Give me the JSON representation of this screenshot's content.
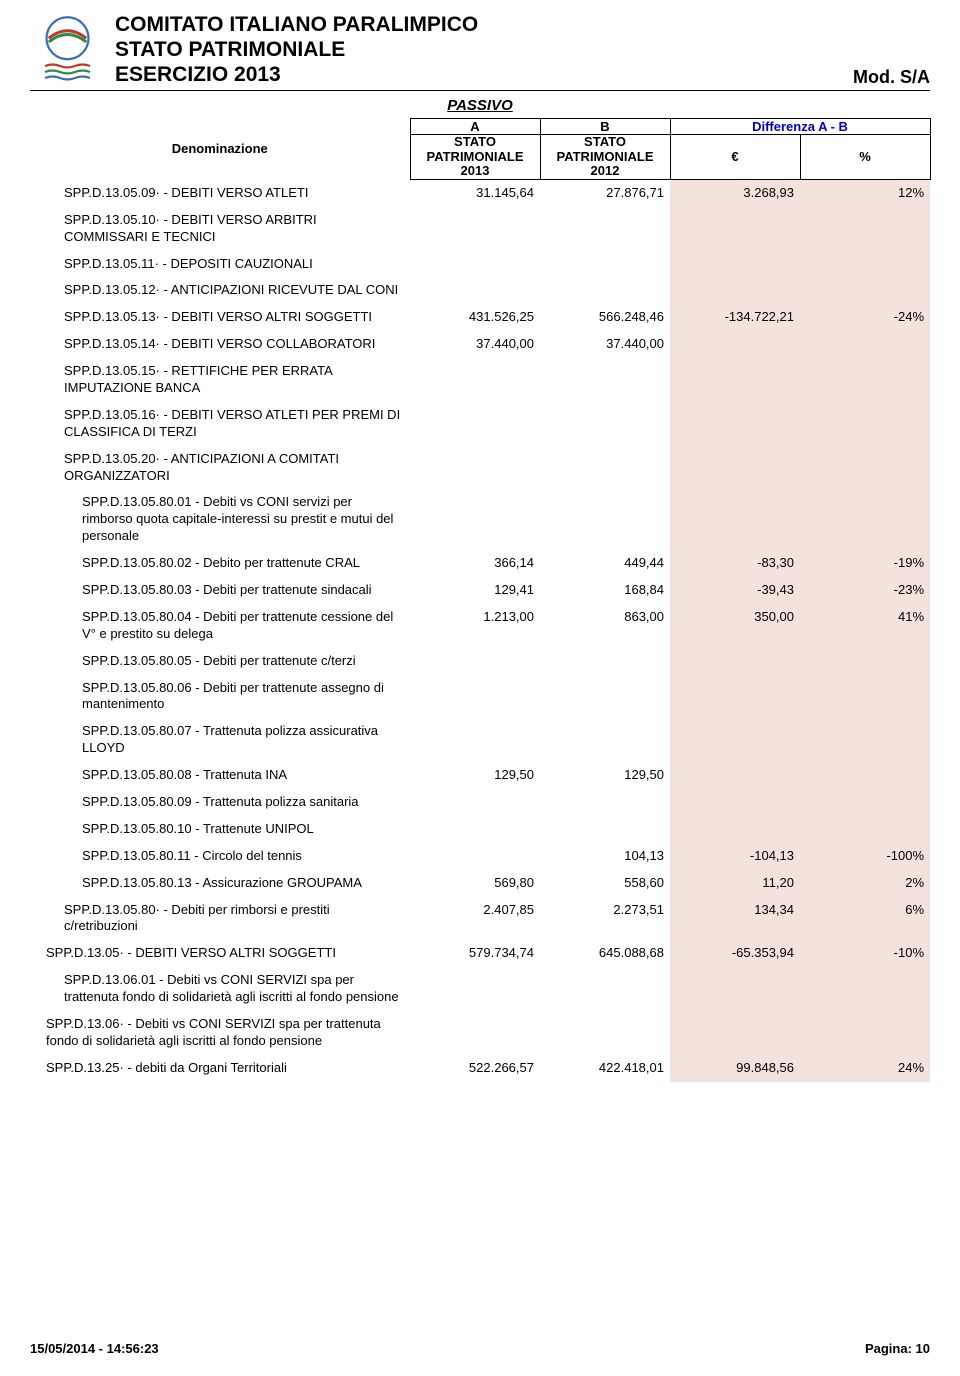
{
  "header": {
    "org": "COMITATO ITALIANO PARALIMPICO",
    "doc": "STATO PATRIMONIALE",
    "year": "ESERCIZIO 2013",
    "mod": "Mod. S/A"
  },
  "section_title": "PASSIVO",
  "columns": {
    "deno": "Denominazione",
    "a_top": "A",
    "b_top": "B",
    "diff_top": "Differenza A - B",
    "a_sub": "STATO PATRIMONIALE 2013",
    "b_sub": "STATO PATRIMONIALE 2012",
    "eur": "€",
    "pct": "%"
  },
  "colors": {
    "shade": "#f4e2dc",
    "header_border": "#000000",
    "diff_color": "#0000c8"
  },
  "col_widths": {
    "label": 380,
    "a": 130,
    "b": 130,
    "d": 130,
    "e": 130
  },
  "rows": [
    {
      "indent": 2,
      "label": "SPP.D.13.05.09· - DEBITI VERSO ATLETI",
      "a": "31.145,64",
      "b": "27.876,71",
      "d": "3.268,93",
      "e": "12%"
    },
    {
      "indent": 2,
      "label": "SPP.D.13.05.10· - DEBITI VERSO ARBITRI COMMISSARI E TECNICI",
      "a": "",
      "b": "",
      "d": "",
      "e": ""
    },
    {
      "indent": 2,
      "label": "SPP.D.13.05.11· - DEPOSITI CAUZIONALI",
      "a": "",
      "b": "",
      "d": "",
      "e": ""
    },
    {
      "indent": 2,
      "label": "SPP.D.13.05.12· - ANTICIPAZIONI RICEVUTE DAL CONI",
      "a": "",
      "b": "",
      "d": "",
      "e": ""
    },
    {
      "indent": 2,
      "label": "SPP.D.13.05.13· - DEBITI VERSO ALTRI SOGGETTI",
      "a": "431.526,25",
      "b": "566.248,46",
      "d": "-134.722,21",
      "e": "-24%"
    },
    {
      "indent": 2,
      "label": "SPP.D.13.05.14· - DEBITI VERSO COLLABORATORI",
      "a": "37.440,00",
      "b": "37.440,00",
      "d": "",
      "e": ""
    },
    {
      "indent": 2,
      "label": "SPP.D.13.05.15· - RETTIFICHE PER ERRATA IMPUTAZIONE BANCA",
      "a": "",
      "b": "",
      "d": "",
      "e": ""
    },
    {
      "indent": 2,
      "label": "SPP.D.13.05.16· - DEBITI VERSO ATLETI PER PREMI DI CLASSIFICA DI TERZI",
      "a": "",
      "b": "",
      "d": "",
      "e": ""
    },
    {
      "indent": 2,
      "label": "SPP.D.13.05.20· - ANTICIPAZIONI A COMITATI ORGANIZZATORI",
      "a": "",
      "b": "",
      "d": "",
      "e": ""
    },
    {
      "indent": 3,
      "label": "SPP.D.13.05.80.01 - Debiti vs CONI servizi per rimborso quota capitale-interessi su prestit e mutui del personale",
      "a": "",
      "b": "",
      "d": "",
      "e": ""
    },
    {
      "indent": 3,
      "label": "SPP.D.13.05.80.02 - Debito per trattenute CRAL",
      "a": "366,14",
      "b": "449,44",
      "d": "-83,30",
      "e": "-19%"
    },
    {
      "indent": 3,
      "label": "SPP.D.13.05.80.03 - Debiti per trattenute sindacali",
      "a": "129,41",
      "b": "168,84",
      "d": "-39,43",
      "e": "-23%"
    },
    {
      "indent": 3,
      "label": "SPP.D.13.05.80.04 - Debiti per trattenute cessione del V° e prestito su delega",
      "a": "1.213,00",
      "b": "863,00",
      "d": "350,00",
      "e": "41%"
    },
    {
      "indent": 3,
      "label": "SPP.D.13.05.80.05 - Debiti per trattenute c/terzi",
      "a": "",
      "b": "",
      "d": "",
      "e": ""
    },
    {
      "indent": 3,
      "label": "SPP.D.13.05.80.06 - Debiti per trattenute assegno di mantenimento",
      "a": "",
      "b": "",
      "d": "",
      "e": ""
    },
    {
      "indent": 3,
      "label": "SPP.D.13.05.80.07 - Trattenuta polizza assicurativa LLOYD",
      "a": "",
      "b": "",
      "d": "",
      "e": ""
    },
    {
      "indent": 3,
      "label": "SPP.D.13.05.80.08 - Trattenuta INA",
      "a": "129,50",
      "b": "129,50",
      "d": "",
      "e": ""
    },
    {
      "indent": 3,
      "label": "SPP.D.13.05.80.09 - Trattenuta polizza sanitaria",
      "a": "",
      "b": "",
      "d": "",
      "e": ""
    },
    {
      "indent": 3,
      "label": "SPP.D.13.05.80.10 - Trattenute UNIPOL",
      "a": "",
      "b": "",
      "d": "",
      "e": ""
    },
    {
      "indent": 3,
      "label": "SPP.D.13.05.80.11 - Circolo del tennis",
      "a": "",
      "b": "104,13",
      "d": "-104,13",
      "e": "-100%"
    },
    {
      "indent": 3,
      "label": "SPP.D.13.05.80.13 - Assicurazione GROUPAMA",
      "a": "569,80",
      "b": "558,60",
      "d": "11,20",
      "e": "2%"
    },
    {
      "indent": 2,
      "label": "SPP.D.13.05.80· - Debiti per rimborsi e prestiti c/retribuzioni",
      "a": "2.407,85",
      "b": "2.273,51",
      "d": "134,34",
      "e": "6%"
    },
    {
      "indent": 1,
      "label": "SPP.D.13.05· - DEBITI VERSO ALTRI SOGGETTI",
      "a": "579.734,74",
      "b": "645.088,68",
      "d": "-65.353,94",
      "e": "-10%"
    },
    {
      "indent": 2,
      "label": "SPP.D.13.06.01 - Debiti vs CONI SERVIZI spa per trattenuta fondo di solidarietà agli iscritti al fondo pensione",
      "a": "",
      "b": "",
      "d": "",
      "e": ""
    },
    {
      "indent": 1,
      "label": "SPP.D.13.06· - Debiti vs CONI SERVIZI spa per trattenuta fondo di solidarietà agli iscritti al fondo pensione",
      "a": "",
      "b": "",
      "d": "",
      "e": ""
    },
    {
      "indent": 1,
      "label": "SPP.D.13.25· - debiti da Organi Territoriali",
      "a": "522.266,57",
      "b": "422.418,01",
      "d": "99.848,56",
      "e": "24%"
    }
  ],
  "footer": {
    "timestamp": "15/05/2014 - 14:56:23",
    "page": "Pagina: 10"
  }
}
